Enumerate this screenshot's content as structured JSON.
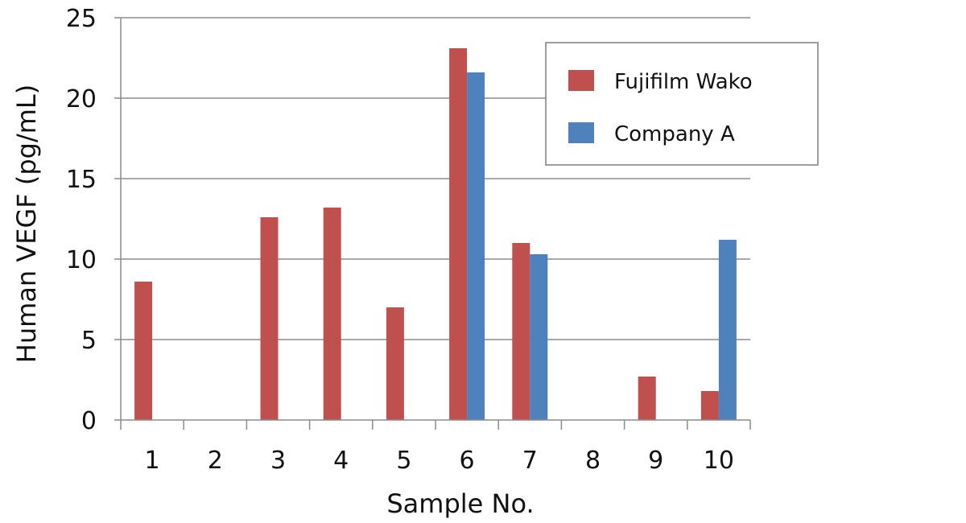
{
  "chart_data": {
    "type": "bar",
    "categories": [
      "1",
      "2",
      "3",
      "4",
      "5",
      "6",
      "7",
      "8",
      "9",
      "10"
    ],
    "series": [
      {
        "name": "Fujifilm Wako",
        "color": "#c0504d",
        "values": [
          8.6,
          null,
          12.6,
          13.2,
          7.0,
          23.1,
          11.0,
          null,
          2.7,
          1.8
        ]
      },
      {
        "name": "Company A",
        "color": "#4f81bd",
        "values": [
          null,
          null,
          null,
          null,
          null,
          21.6,
          10.3,
          null,
          null,
          11.2
        ]
      }
    ],
    "xlabel": "Sample No.",
    "ylabel": "Human VEGF (pg/mL)",
    "ylim": [
      0,
      25
    ],
    "yticks": [
      0,
      5,
      10,
      15,
      20,
      25
    ],
    "grid": "horizontal",
    "legend_position": "top-right"
  }
}
